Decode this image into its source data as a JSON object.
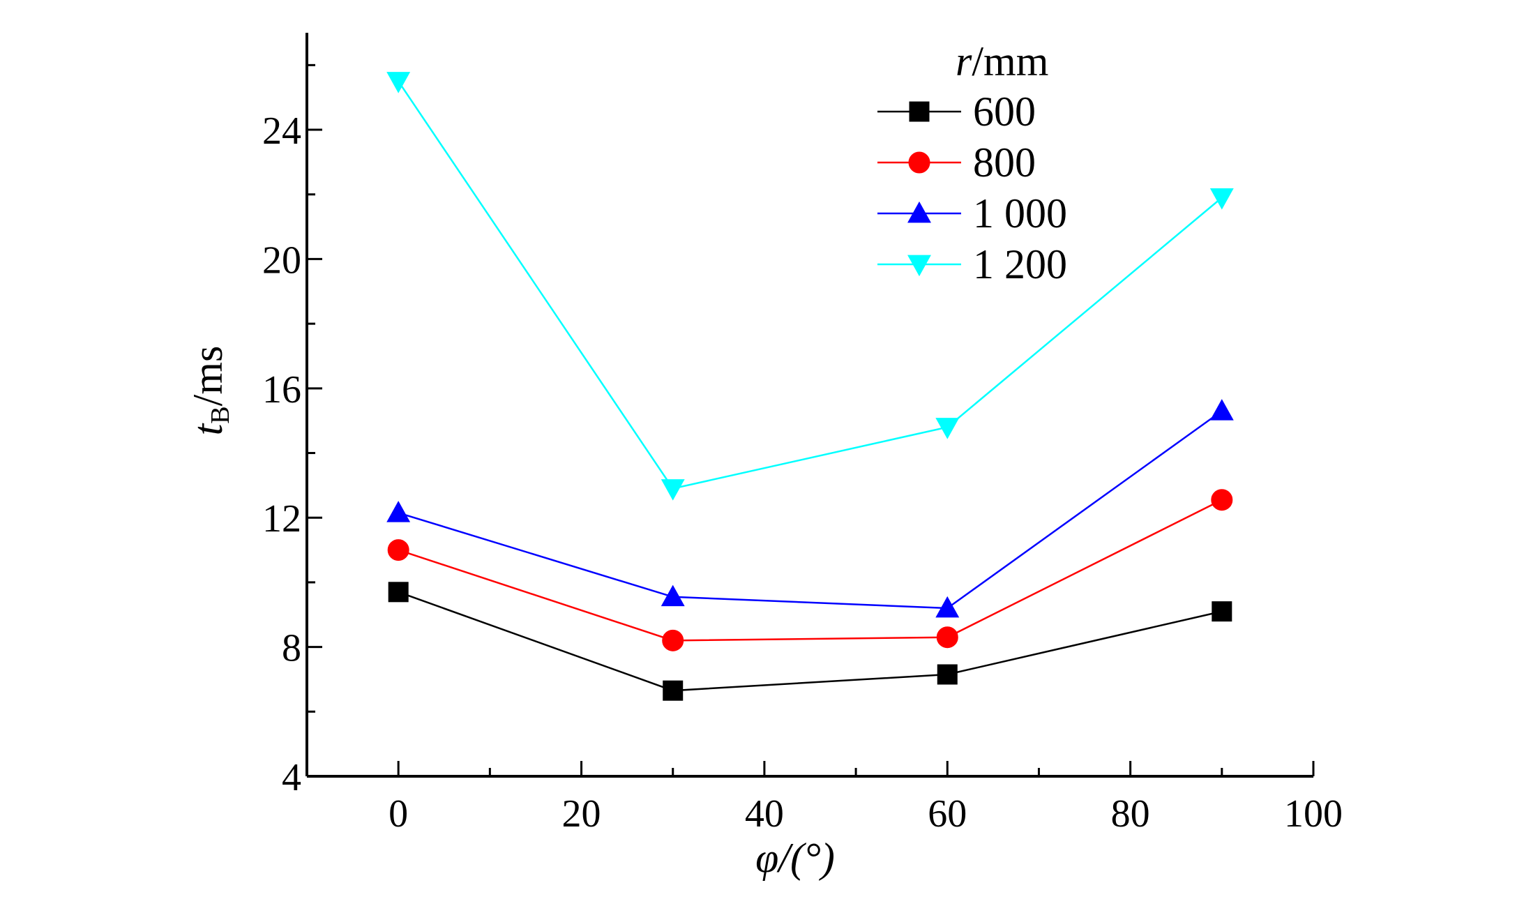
{
  "chart_data": {
    "type": "line",
    "xlabel": "φ/(°)",
    "ylabel_main": "t",
    "ylabel_sub": "B",
    "ylabel_unit": "/ms",
    "xlim": [
      -10,
      100
    ],
    "ylim": [
      4,
      27
    ],
    "x_ticks": [
      0,
      20,
      40,
      60,
      80,
      100
    ],
    "y_ticks": [
      4,
      8,
      12,
      16,
      20,
      24
    ],
    "legend_title_var": "r",
    "legend_title_unit": "/mm",
    "legend_position": "top-right",
    "grid": false,
    "x": [
      0,
      30,
      60,
      90
    ],
    "series": [
      {
        "name": "600",
        "values": [
          9.7,
          6.65,
          7.15,
          9.1
        ],
        "color": "#000000",
        "marker": "square"
      },
      {
        "name": "800",
        "values": [
          11.0,
          8.2,
          8.3,
          12.55
        ],
        "color": "#ff0000",
        "marker": "circle"
      },
      {
        "name": "1 000",
        "values": [
          12.15,
          9.55,
          9.2,
          15.3
        ],
        "color": "#0000ff",
        "marker": "triangle-up"
      },
      {
        "name": "1 200",
        "values": [
          25.5,
          12.9,
          14.8,
          21.9
        ],
        "color": "#00ffff",
        "marker": "triangle-down"
      }
    ]
  }
}
